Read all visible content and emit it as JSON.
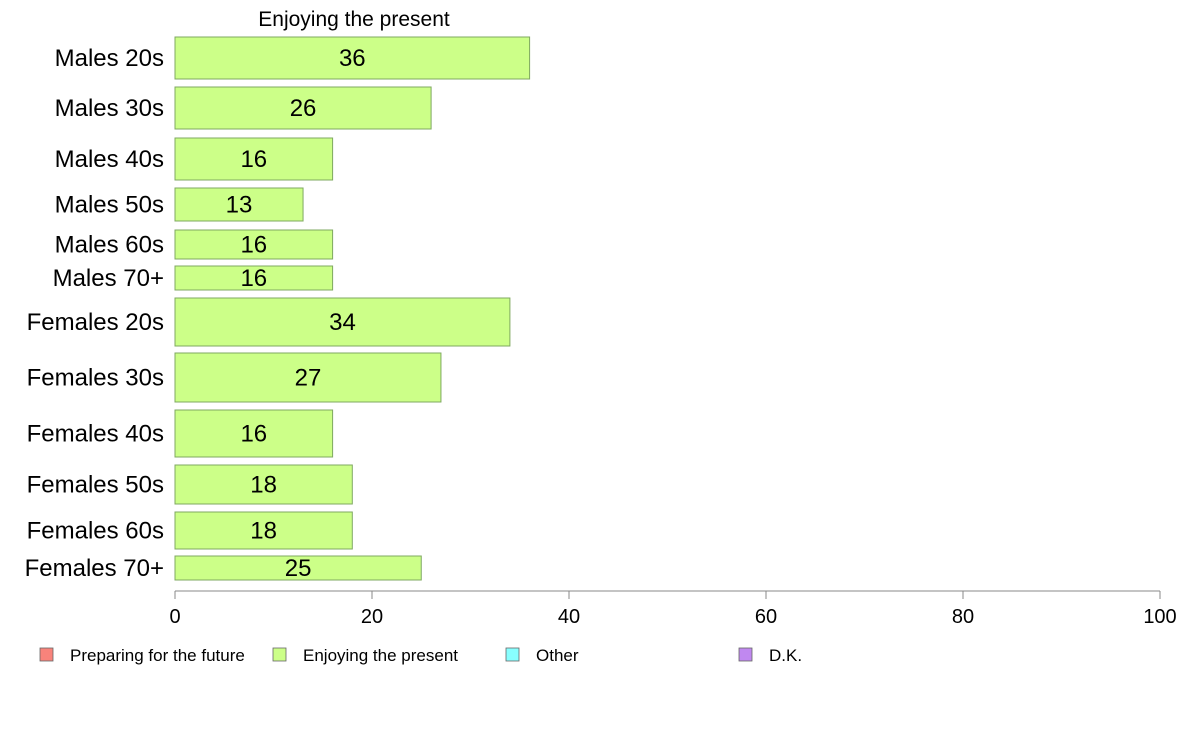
{
  "chart_data": {
    "type": "bar",
    "orientation": "horizontal",
    "title": "Enjoying the present",
    "categories": [
      "Males 20s",
      "Males 30s",
      "Males 40s",
      "Males 50s",
      "Males 60s",
      "Males 70+",
      "Females 20s",
      "Females 30s",
      "Females 40s",
      "Females 50s",
      "Females 60s",
      "Females 70+"
    ],
    "series": [
      {
        "name": "Enjoying the present",
        "values": [
          36,
          26,
          16,
          13,
          16,
          16,
          34,
          27,
          16,
          18,
          18,
          25
        ]
      }
    ],
    "value_labels": [
      "36",
      "26",
      "16",
      "13",
      "16",
      "16",
      "34",
      "27",
      "16",
      "18",
      "18",
      "25"
    ],
    "xlim": [
      0,
      100
    ],
    "xticks": [
      "0",
      "20",
      "40",
      "60",
      "80",
      "100"
    ],
    "grid": false,
    "legend": {
      "placement": "bottom",
      "entries": [
        {
          "label": "Preparing for the future",
          "color": "#f8837b"
        },
        {
          "label": "Enjoying the present",
          "color": "#ccff88"
        },
        {
          "label": "Other",
          "color": "#88ffff"
        },
        {
          "label": "D.K.",
          "color": "#c088f0"
        }
      ]
    },
    "colors": {
      "bar_fill": "#ccff88",
      "bar_stroke": "#7fa860",
      "axis": "#888888"
    }
  }
}
